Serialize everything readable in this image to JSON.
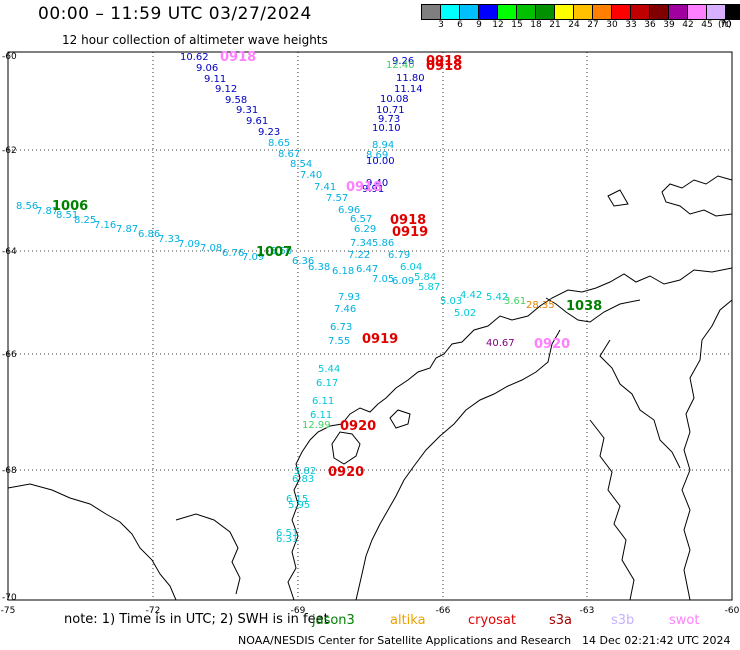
{
  "header": {
    "title": "00:00 – 11:59 UTC 03/27/2024",
    "subtitle": "12 hour collection of altimeter wave heights"
  },
  "colorbar": {
    "colors": [
      "#7f7f7f",
      "#00ffff",
      "#00bfff",
      "#0000ff",
      "#00ff00",
      "#00c000",
      "#009000",
      "#ffff00",
      "#ffc000",
      "#ff8000",
      "#ff0000",
      "#c00000",
      "#800000",
      "#a000a0",
      "#ff80ff",
      "#d8b0ff",
      "#000000"
    ],
    "labels": [
      "3",
      "6",
      "9",
      "12",
      "15",
      "18",
      "21",
      "24",
      "27",
      "30",
      "33",
      "36",
      "39",
      "42",
      "45",
      "70"
    ],
    "units": "(ft)"
  },
  "axes": {
    "lon_ticks": [
      "-75",
      "-72",
      "-69",
      "-66",
      "-63",
      "-60"
    ],
    "lat_ticks": [
      "-60",
      "-62",
      "-64",
      "-66",
      "-68",
      "-70"
    ]
  },
  "wave_labels": [
    {
      "text": "10.62",
      "color": "#0000c0"
    },
    {
      "text": "9.06",
      "color": "#0000c0"
    },
    {
      "text": "9.11",
      "color": "#0000c0"
    },
    {
      "text": "9.12",
      "color": "#0000c0"
    },
    {
      "text": "9.58",
      "color": "#0000c0"
    },
    {
      "text": "9.31",
      "color": "#0000c0"
    },
    {
      "text": "9.61",
      "color": "#0000c0"
    },
    {
      "text": "9.23",
      "color": "#0000c0"
    },
    {
      "text": "8.65",
      "color": "#00b0e0"
    },
    {
      "text": "8.67",
      "color": "#00b0e0"
    },
    {
      "text": "8.54",
      "color": "#00b0e0"
    },
    {
      "text": "7.40",
      "color": "#00b0e0"
    },
    {
      "text": "7.41",
      "color": "#00b0e0"
    },
    {
      "text": "7.57",
      "color": "#00b0e0"
    },
    {
      "text": "6.96",
      "color": "#00b0e0"
    },
    {
      "text": "6.57",
      "color": "#00b0e0"
    },
    {
      "text": "6.29",
      "color": "#00b0e0"
    },
    {
      "text": "7.34",
      "color": "#00b0e0"
    },
    {
      "text": "5.86",
      "color": "#00b0e0"
    },
    {
      "text": "7.22",
      "color": "#00b0e0"
    },
    {
      "text": "6.79",
      "color": "#00b0e0"
    },
    {
      "text": "6.04",
      "color": "#00c8d8"
    },
    {
      "text": "5.84",
      "color": "#00c8d8"
    },
    {
      "text": "5.87",
      "color": "#00c8d8"
    },
    {
      "text": "5.03",
      "color": "#00c8d8"
    },
    {
      "text": "5.02",
      "color": "#00c8d8"
    },
    {
      "text": "4.42",
      "color": "#00c8d8"
    },
    {
      "text": "5.42",
      "color": "#00c8d8"
    },
    {
      "text": "3.61",
      "color": "#40d060"
    },
    {
      "text": "28.35",
      "color": "#e08000"
    },
    {
      "text": "40.67",
      "color": "#800080"
    },
    {
      "text": "6.09",
      "color": "#00b0e0"
    },
    {
      "text": "7.05",
      "color": "#00b0e0"
    },
    {
      "text": "6.47",
      "color": "#00b0e0"
    },
    {
      "text": "6.18",
      "color": "#00b0e0"
    },
    {
      "text": "6.38",
      "color": "#00b0e0"
    },
    {
      "text": "6.36",
      "color": "#00b0e0"
    },
    {
      "text": "6.50",
      "color": "#00b0e0"
    },
    {
      "text": "7.93",
      "color": "#00b0e0"
    },
    {
      "text": "7.46",
      "color": "#00b0e0"
    },
    {
      "text": "6.73",
      "color": "#00b0e0"
    },
    {
      "text": "7.55",
      "color": "#00b0e0"
    },
    {
      "text": "5.44",
      "color": "#00c8d8"
    },
    {
      "text": "6.17",
      "color": "#00c8d8"
    },
    {
      "text": "6.11",
      "color": "#00c8d8"
    },
    {
      "text": "6.11",
      "color": "#00c8d8"
    },
    {
      "text": "12.99",
      "color": "#40d060"
    },
    {
      "text": "5.82",
      "color": "#00c8d8"
    },
    {
      "text": "6.83",
      "color": "#00c8d8"
    },
    {
      "text": "6.15",
      "color": "#00c8d8"
    },
    {
      "text": "5.95",
      "color": "#00c8d8"
    },
    {
      "text": "6.51",
      "color": "#00c8d8"
    },
    {
      "text": "6.31",
      "color": "#00c8d8"
    },
    {
      "text": "9.26",
      "color": "#0000c0"
    },
    {
      "text": "12.40",
      "color": "#40d060"
    },
    {
      "text": "11.80",
      "color": "#0000c0"
    },
    {
      "text": "11.14",
      "color": "#0000c0"
    },
    {
      "text": "10.08",
      "color": "#0000c0"
    },
    {
      "text": "10.71",
      "color": "#0000c0"
    },
    {
      "text": "9.73",
      "color": "#0000c0"
    },
    {
      "text": "10.10",
      "color": "#0000c0"
    },
    {
      "text": "8.94",
      "color": "#00b0e0"
    },
    {
      "text": "8.69",
      "color": "#00b0e0"
    },
    {
      "text": "10.00",
      "color": "#0000c0"
    },
    {
      "text": "9.40",
      "color": "#0000c0"
    },
    {
      "text": "9.91",
      "color": "#0000c0"
    },
    {
      "text": "8.56",
      "color": "#00b0e0"
    },
    {
      "text": "7.87",
      "color": "#00b0e0"
    },
    {
      "text": "8.51",
      "color": "#00b0e0"
    },
    {
      "text": "8.25",
      "color": "#00b0e0"
    },
    {
      "text": "7.16",
      "color": "#00b0e0"
    },
    {
      "text": "7.87",
      "color": "#00b0e0"
    },
    {
      "text": "6.86",
      "color": "#00b0e0"
    },
    {
      "text": "7.33",
      "color": "#00b0e0"
    },
    {
      "text": "7.09",
      "color": "#00b0e0"
    },
    {
      "text": "7.08",
      "color": "#00b0e0"
    },
    {
      "text": "6.76",
      "color": "#00b0e0"
    },
    {
      "text": "7.09",
      "color": "#00b0e0"
    }
  ],
  "time_labels": [
    {
      "text": "0918",
      "color": "#ff80ff"
    },
    {
      "text": "0918",
      "color": "#e00000"
    },
    {
      "text": "0918",
      "color": "#e00000"
    },
    {
      "text": "0918",
      "color": "#e00000"
    },
    {
      "text": "0919",
      "color": "#e00000"
    },
    {
      "text": "0918",
      "color": "#ff80ff"
    },
    {
      "text": "0919",
      "color": "#e00000"
    },
    {
      "text": "0920",
      "color": "#e00000"
    },
    {
      "text": "0920",
      "color": "#e00000"
    },
    {
      "text": "0920",
      "color": "#ff80ff"
    },
    {
      "text": "1006",
      "color": "#008000"
    },
    {
      "text": "1007",
      "color": "#008000"
    },
    {
      "text": "1038",
      "color": "#008000"
    }
  ],
  "note": "note:  1) Time is in UTC; 2) SWH is in feet",
  "satellites": [
    {
      "name": "jason3",
      "color": "#008000"
    },
    {
      "name": "altika",
      "color": "#f0a000"
    },
    {
      "name": "cryosat",
      "color": "#e00000"
    },
    {
      "name": "s3a",
      "color": "#a00000"
    },
    {
      "name": "s3b",
      "color": "#c8b0ff"
    },
    {
      "name": "swot",
      "color": "#ff80ff"
    }
  ],
  "credit": "NOAA/NESDIS Center for Satellite Applications and Research",
  "generated": "14 Dec 02:21:42 UTC 2024"
}
